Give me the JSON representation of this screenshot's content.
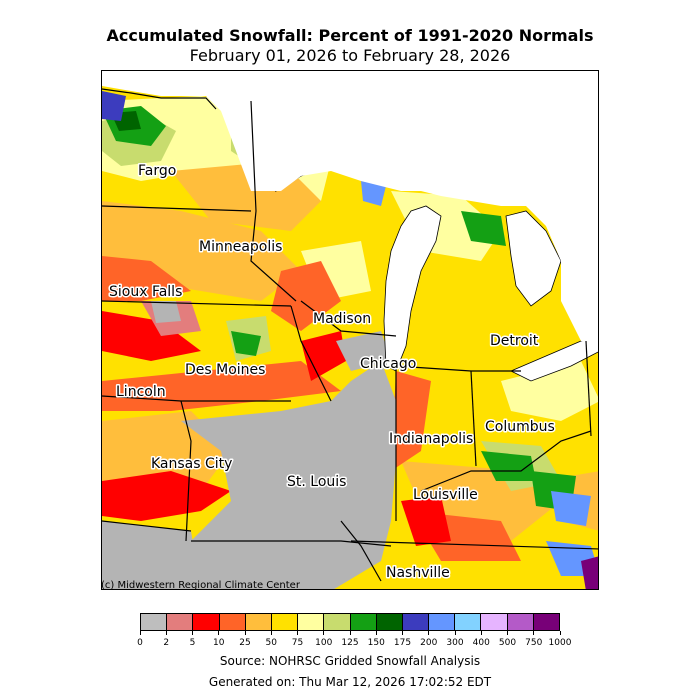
{
  "title": "Accumulated Snowfall: Percent of 1991-2020 Normals",
  "subtitle": "February 01, 2026 to February 28, 2026",
  "credit": "(c) Midwestern Regional Climate Center",
  "source": "Source: NOHRSC Gridded Snowfall Analysis",
  "generated": "Generated on: Thu Mar 12, 2026 17:02:52 EDT",
  "cities": [
    {
      "name": "Fargo"
    },
    {
      "name": "Minneapolis"
    },
    {
      "name": "Sioux Falls"
    },
    {
      "name": "Madison"
    },
    {
      "name": "Detroit"
    },
    {
      "name": "Chicago"
    },
    {
      "name": "Des Moines"
    },
    {
      "name": "Lincoln"
    },
    {
      "name": "Indianapolis"
    },
    {
      "name": "Columbus"
    },
    {
      "name": "Kansas City"
    },
    {
      "name": "St. Louis"
    },
    {
      "name": "Louisville"
    },
    {
      "name": "Nashville"
    }
  ],
  "legend": {
    "ticks": [
      "0",
      "2",
      "5",
      "10",
      "25",
      "50",
      "75",
      "100",
      "125",
      "150",
      "175",
      "200",
      "300",
      "400",
      "500",
      "750",
      "1000"
    ],
    "colors": [
      "#bebebe",
      "#e37d7d",
      "#ff0000",
      "#ff6428",
      "#ffbe3c",
      "#ffe100",
      "#ffffa0",
      "#c8dc6e",
      "#14a014",
      "#006400",
      "#3c3cbe",
      "#6496ff",
      "#82d2ff",
      "#e6b4ff",
      "#b45ac8",
      "#780078"
    ]
  },
  "colors": {
    "water": "#ffffff",
    "no_data_gray": "#b4b4b4"
  }
}
